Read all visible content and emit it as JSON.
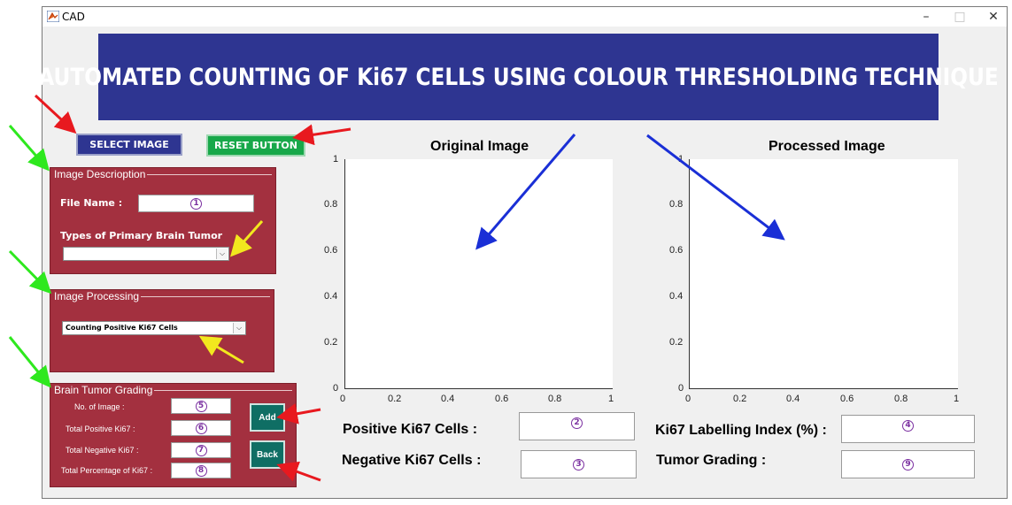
{
  "window": {
    "title": "CAD",
    "controls": {
      "minimize": "–",
      "maximize": "□",
      "close": "✕"
    }
  },
  "banner": {
    "text": "AUTOMATED COUNTING OF Ki67 CELLS USING COLOUR THRESHOLDING TECHNIQUE"
  },
  "buttons": {
    "select_image": "SELECT IMAGE",
    "reset": "RESET BUTTON",
    "add": "Add",
    "back": "Back"
  },
  "image_description": {
    "title": "Image Descrioption",
    "file_name_label": "File Name   :",
    "file_name_marker": "1",
    "tumor_types_label": "Types of Primary Brain Tumor",
    "tumor_types_value": ""
  },
  "image_processing": {
    "title": "Image Processing",
    "method_value": "Counting Positive Ki67 Cells"
  },
  "grading": {
    "title": "Brain Tumor Grading",
    "rows": [
      {
        "label": "No. of Image :",
        "marker": "5"
      },
      {
        "label": "Total Positive Ki67 :",
        "marker": "6"
      },
      {
        "label": "Total Negative Ki67 :",
        "marker": "7"
      },
      {
        "label": "Total Percentage of Ki67 :",
        "marker": "8"
      }
    ]
  },
  "axes": {
    "original_title": "Original Image",
    "processed_title": "Processed Image",
    "y_ticks": [
      "1",
      "0.8",
      "0.6",
      "0.4",
      "0.2",
      "0"
    ],
    "x_ticks": [
      "0",
      "0.2",
      "0.4",
      "0.6",
      "0.8",
      "1"
    ]
  },
  "results": {
    "positive_label": "Positive Ki67 Cells :",
    "positive_marker": "2",
    "negative_label": "Negative Ki67 Cells :",
    "negative_marker": "3",
    "labelling_label": "Ki67 Labelling Index (%) :",
    "labelling_marker": "4",
    "grading_label": "Tumor Grading :",
    "grading_marker": "9"
  },
  "colors": {
    "banner": "#2e3591",
    "panel": "#a3303f",
    "reset": "#18a84a",
    "action": "#0f6e64",
    "arrow_red": "#e8191f",
    "arrow_green": "#2ee81e",
    "arrow_yellow": "#f2e81e",
    "arrow_blue": "#1a2fd6",
    "marker": "#7a2fa0"
  }
}
